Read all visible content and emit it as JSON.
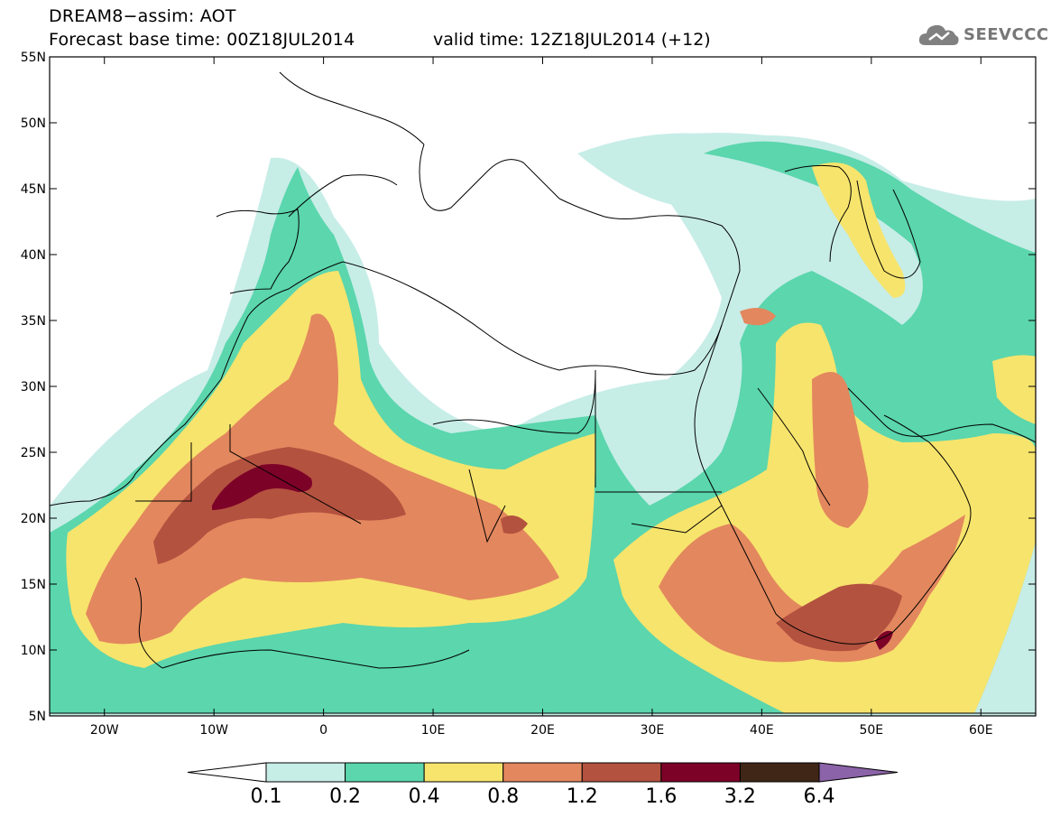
{
  "header": {
    "title_line1": "DREAM8−assim: AOT",
    "title_line2": "Forecast base time: 00Z18JUL2014",
    "valid_time": "valid time: 12Z18JUL2014 (+12)"
  },
  "logo": {
    "text": "SEEVCCC",
    "icon": "cloud-logo-icon"
  },
  "map": {
    "lat_labels": [
      "55N",
      "50N",
      "45N",
      "40N",
      "35N",
      "30N",
      "25N",
      "20N",
      "15N",
      "10N",
      "5N"
    ],
    "lon_labels": [
      "20W",
      "10W",
      "0",
      "10E",
      "20E",
      "30E",
      "40E",
      "50E",
      "60E"
    ],
    "lat_range": [
      5,
      55
    ],
    "lon_range": [
      -25,
      65
    ],
    "field": "AOT (dust aerosol optical thickness)"
  },
  "colorbar": {
    "tick_labels": [
      "0.1",
      "0.2",
      "0.4",
      "0.8",
      "1.2",
      "1.6",
      "3.2",
      "6.4"
    ],
    "colors": [
      "#ffffff",
      "#c7ede7",
      "#5bd6ad",
      "#f7e46c",
      "#e3875e",
      "#b3523f",
      "#7d0228",
      "#3f2617",
      "#8b63a8"
    ]
  }
}
